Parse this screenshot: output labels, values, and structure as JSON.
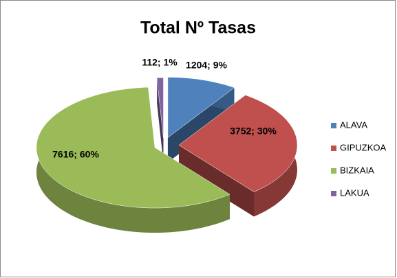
{
  "chart_data": {
    "type": "pie",
    "title": "Total Nº Tasas",
    "categories": [
      "ALAVA",
      "GIPUZKOA",
      "BIZKAIA",
      "LAKUA"
    ],
    "values": [
      1204,
      3752,
      7616,
      112
    ],
    "value_labels": [
      "1204; 9%",
      "3752; 30%",
      "7616; 60%",
      "112; 1%"
    ],
    "colors": [
      "#4f81bd",
      "#c0504d",
      "#9bbb59",
      "#8064a2"
    ],
    "legend": "right"
  }
}
